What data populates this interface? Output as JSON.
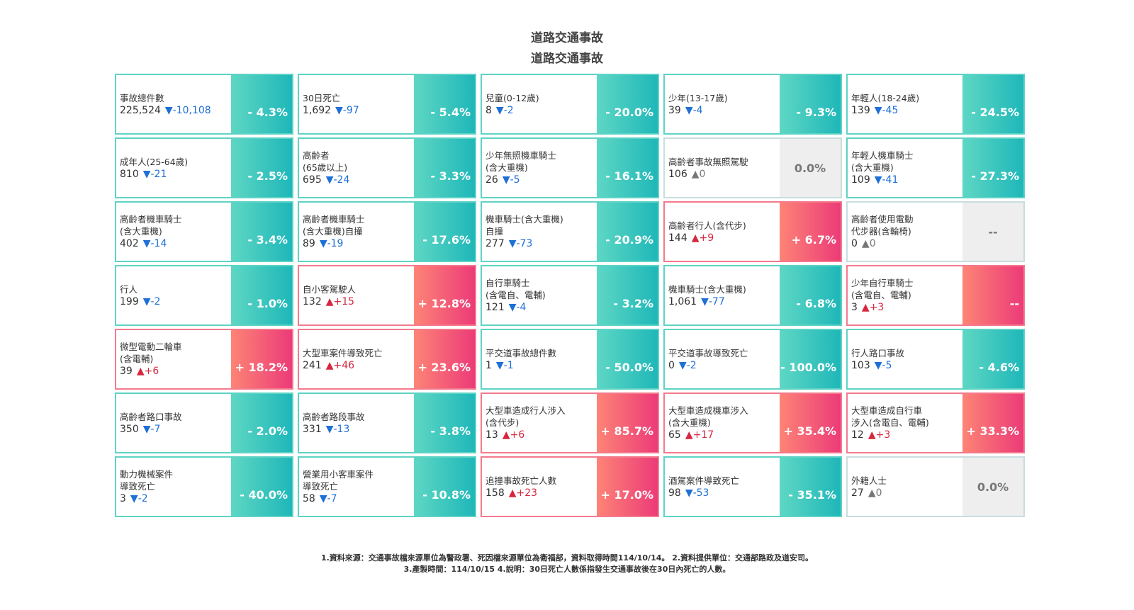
{
  "titles": [
    "道路交通事故",
    "道路交通事故"
  ],
  "cards": [
    {
      "name": "事故總件數",
      "value": "225,524",
      "delta": "▼-10,108",
      "pct": "- 4.3%",
      "trend": "down"
    },
    {
      "name": "30日死亡",
      "value": "1,692",
      "delta": "▼-97",
      "pct": "- 5.4%",
      "trend": "down"
    },
    {
      "name": "兒童(0-12歲)",
      "value": "8",
      "delta": "▼-2",
      "pct": "- 20.0%",
      "trend": "down"
    },
    {
      "name": "少年(13-17歲)",
      "value": "39",
      "delta": "▼-4",
      "pct": "- 9.3%",
      "trend": "down"
    },
    {
      "name": "年輕人(18-24歲)",
      "value": "139",
      "delta": "▼-45",
      "pct": "- 24.5%",
      "trend": "down"
    },
    {
      "name": "成年人(25-64歲)",
      "value": "810",
      "delta": "▼-21",
      "pct": "- 2.5%",
      "trend": "down"
    },
    {
      "name": "高齡者\n(65歲以上)",
      "value": "695",
      "delta": "▼-24",
      "pct": "- 3.3%",
      "trend": "down"
    },
    {
      "name": "少年無照機車騎士\n(含大重機)",
      "value": "26",
      "delta": "▼-5",
      "pct": "- 16.1%",
      "trend": "down"
    },
    {
      "name": "高齡者事故無照駕駛",
      "value": "106",
      "delta": "▲0",
      "pct": "0.0%",
      "trend": "flat"
    },
    {
      "name": "年輕人機車騎士\n(含大重機)",
      "value": "109",
      "delta": "▼-41",
      "pct": "- 27.3%",
      "trend": "down"
    },
    {
      "name": "高齡者機車騎士\n(含大重機)",
      "value": "402",
      "delta": "▼-14",
      "pct": "- 3.4%",
      "trend": "down"
    },
    {
      "name": "高齡者機車騎士\n(含大重機)自撞",
      "value": "89",
      "delta": "▼-19",
      "pct": "- 17.6%",
      "trend": "down"
    },
    {
      "name": "機車騎士(含大重機)\n自撞",
      "value": "277",
      "delta": "▼-73",
      "pct": "- 20.9%",
      "trend": "down"
    },
    {
      "name": "高齡者行人(含代步)",
      "value": "144",
      "delta": "▲+9",
      "pct": "+ 6.7%",
      "trend": "up"
    },
    {
      "name": "高齡者使用電動\n代步器(含輪椅)",
      "value": "0",
      "delta": "▲0",
      "pct": "--",
      "trend": "flat"
    },
    {
      "name": "行人",
      "value": "199",
      "delta": "▼-2",
      "pct": "- 1.0%",
      "trend": "down"
    },
    {
      "name": "自小客駕駛人",
      "value": "132",
      "delta": "▲+15",
      "pct": "+ 12.8%",
      "trend": "up"
    },
    {
      "name": "自行車騎士\n(含電自、電輔)",
      "value": "121",
      "delta": "▼-4",
      "pct": "- 3.2%",
      "trend": "down"
    },
    {
      "name": "機車騎士(含大重機)",
      "value": "1,061",
      "delta": "▼-77",
      "pct": "- 6.8%",
      "trend": "down"
    },
    {
      "name": "少年自行車騎士\n(含電自、電輔)",
      "value": "3",
      "delta": "▲+3",
      "pct": "--",
      "trend": "up"
    },
    {
      "name": "微型電動二輪車\n(含電輔)",
      "value": "39",
      "delta": "▲+6",
      "pct": "+ 18.2%",
      "trend": "up"
    },
    {
      "name": "大型車案件導致死亡",
      "value": "241",
      "delta": "▲+46",
      "pct": "+ 23.6%",
      "trend": "up"
    },
    {
      "name": "平交道事故總件數",
      "value": "1",
      "delta": "▼-1",
      "pct": "- 50.0%",
      "trend": "down"
    },
    {
      "name": "平交道事故導致死亡",
      "value": "0",
      "delta": "▼-2",
      "pct": "- 100.0%",
      "trend": "down"
    },
    {
      "name": "行人路口事故",
      "value": "103",
      "delta": "▼-5",
      "pct": "- 4.6%",
      "trend": "down"
    },
    {
      "name": "高齡者路口事故",
      "value": "350",
      "delta": "▼-7",
      "pct": "- 2.0%",
      "trend": "down"
    },
    {
      "name": "高齡者路段事故",
      "value": "331",
      "delta": "▼-13",
      "pct": "- 3.8%",
      "trend": "down"
    },
    {
      "name": "大型車造成行人涉入\n(含代步)",
      "value": "13",
      "delta": "▲+6",
      "pct": "+ 85.7%",
      "trend": "up"
    },
    {
      "name": "大型車造成機車涉入\n(含大重機)",
      "value": "65",
      "delta": "▲+17",
      "pct": "+ 35.4%",
      "trend": "up"
    },
    {
      "name": "大型車造成自行車\n涉入(含電自、電輔)",
      "value": "12",
      "delta": "▲+3",
      "pct": "+ 33.3%",
      "trend": "up"
    },
    {
      "name": "動力機械案件\n導致死亡",
      "value": "3",
      "delta": "▼-2",
      "pct": "- 40.0%",
      "trend": "down"
    },
    {
      "name": "營業用小客車案件\n導致死亡",
      "value": "58",
      "delta": "▼-7",
      "pct": "- 10.8%",
      "trend": "down"
    },
    {
      "name": "追撞事故死亡人數",
      "value": "158",
      "delta": "▲+23",
      "pct": "+ 17.0%",
      "trend": "up"
    },
    {
      "name": "酒駕案件導致死亡",
      "value": "98",
      "delta": "▼-53",
      "pct": "- 35.1%",
      "trend": "down"
    },
    {
      "name": "外籍人士",
      "value": "27",
      "delta": "▲0",
      "pct": "0.0%",
      "trend": "flat"
    }
  ],
  "footer": {
    "line1": "1.資料來源：交通事故檔來源單位為警政署、死因檔來源單位為衛福部，資料取得時間114/10/14。 2.資料提供單位：交通部路政及道安司。",
    "line2": "3.產製時間：114/10/15 4.說明：30日死亡人數係指發生交通事故後在30日內死亡的人數。"
  }
}
